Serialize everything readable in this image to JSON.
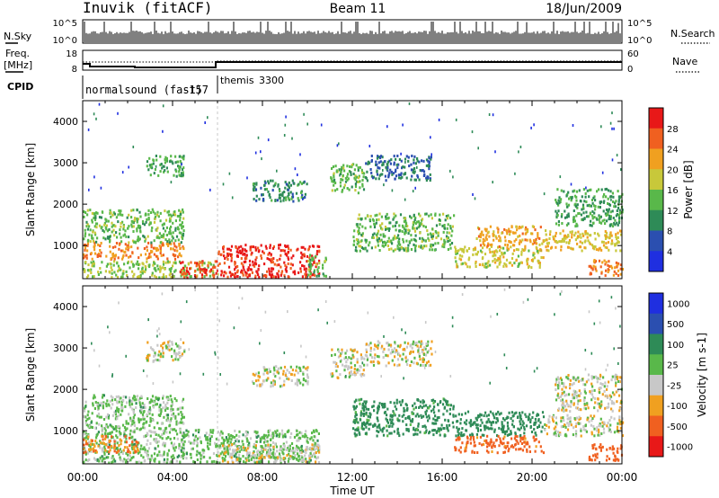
{
  "header": {
    "station": "Inuvik (fitACF)",
    "beam": "Beam 11",
    "date": "18/Jun/2009"
  },
  "summary_panels": {
    "nsky_label": "N.Sky",
    "nsky_ticks": [
      "10^5",
      "10^0"
    ],
    "nsearch_label": "N.Search",
    "freq_label_1": "Freq.",
    "freq_label_2": "[MHz]",
    "freq_ticks": [
      "18",
      "8"
    ],
    "nave_label": "Nave",
    "nave_ticks": [
      "60",
      "0"
    ],
    "cpid_label": "CPID",
    "cpid_segments": [
      {
        "name": "normalsound (fast)",
        "id": "-157",
        "start": "00:00",
        "end": "06:00"
      },
      {
        "name": "themis",
        "id": "3300",
        "start": "06:00",
        "end": "24:00"
      }
    ]
  },
  "chart_data": [
    {
      "type": "heatmap",
      "title": "",
      "xlabel": "Time UT",
      "ylabel": "Slant Range [km]",
      "xlim": [
        "00:00",
        "24:00"
      ],
      "ylim": [
        200,
        4500
      ],
      "x_ticks": [
        "00:00",
        "04:00",
        "08:00",
        "12:00",
        "16:00",
        "20:00",
        "00:00"
      ],
      "y_ticks": [
        1000,
        2000,
        3000,
        4000
      ],
      "colorbar": {
        "label": "Power [dB]",
        "ticks": [
          4,
          8,
          12,
          16,
          20,
          24,
          28
        ],
        "colors": [
          "#1f2fe0",
          "#2b4fb0",
          "#2e8b57",
          "#59b84a",
          "#c8c83a",
          "#f0a020",
          "#f06020",
          "#e81818"
        ]
      },
      "regions": [
        {
          "t0": 0.0,
          "t1": 6.0,
          "r0": 250,
          "r1": 650,
          "level": 16
        },
        {
          "t0": 0.0,
          "t1": 4.5,
          "r0": 700,
          "r1": 1100,
          "level": 24
        },
        {
          "t0": 0.0,
          "t1": 4.5,
          "r0": 1100,
          "r1": 1900,
          "level": 14
        },
        {
          "t0": 2.8,
          "t1": 4.5,
          "r0": 2700,
          "r1": 3200,
          "level": 12
        },
        {
          "t0": 4.3,
          "t1": 6.0,
          "r0": 250,
          "r1": 650,
          "level": 28
        },
        {
          "t0": 6.0,
          "t1": 10.5,
          "r0": 250,
          "r1": 1050,
          "level": 29
        },
        {
          "t0": 10.0,
          "t1": 10.8,
          "r0": 250,
          "r1": 800,
          "level": 14
        },
        {
          "t0": 7.5,
          "t1": 10.0,
          "r0": 2100,
          "r1": 2600,
          "level": 10
        },
        {
          "t0": 11.0,
          "t1": 12.5,
          "r0": 2300,
          "r1": 3000,
          "level": 14
        },
        {
          "t0": 12.0,
          "t1": 16.5,
          "r0": 900,
          "r1": 1800,
          "level": 14
        },
        {
          "t0": 12.5,
          "t1": 15.5,
          "r0": 2600,
          "r1": 3200,
          "level": 8
        },
        {
          "t0": 16.5,
          "t1": 20.5,
          "r0": 500,
          "r1": 1000,
          "level": 18
        },
        {
          "t0": 17.5,
          "t1": 20.5,
          "r0": 1000,
          "r1": 1500,
          "level": 22
        },
        {
          "t0": 20.5,
          "t1": 24.0,
          "r0": 900,
          "r1": 1400,
          "level": 20
        },
        {
          "t0": 21.0,
          "t1": 24.0,
          "r0": 1500,
          "r1": 2400,
          "level": 12
        },
        {
          "t0": 22.5,
          "t1": 24.0,
          "r0": 300,
          "r1": 700,
          "level": 24
        }
      ]
    },
    {
      "type": "heatmap",
      "title": "",
      "xlabel": "Time UT",
      "ylabel": "Slant Range [km]",
      "xlim": [
        "00:00",
        "24:00"
      ],
      "ylim": [
        200,
        4500
      ],
      "x_ticks": [
        "00:00",
        "04:00",
        "08:00",
        "12:00",
        "16:00",
        "20:00",
        "00:00"
      ],
      "y_ticks": [
        1000,
        2000,
        3000,
        4000
      ],
      "colorbar": {
        "label": "Velocity [m s-1]",
        "ticks": [
          1000,
          500,
          100,
          25,
          -25,
          -100,
          -500,
          -1000
        ],
        "colors": [
          "#1f2fe0",
          "#2b4fb0",
          "#2e8b57",
          "#59b84a",
          "#c8c8c8",
          "#f0a020",
          "#f06020",
          "#e81818"
        ]
      },
      "regions": [
        {
          "t0": 0.0,
          "t1": 4.5,
          "r0": 250,
          "r1": 1100,
          "level": 50
        },
        {
          "t0": 0.0,
          "t1": 4.5,
          "r0": 1100,
          "r1": 1900,
          "level": 50
        },
        {
          "t0": 0.0,
          "t1": 2.5,
          "r0": 500,
          "r1": 900,
          "level": -100
        },
        {
          "t0": 2.8,
          "t1": 4.5,
          "r0": 2700,
          "r1": 3200,
          "level": 0
        },
        {
          "t0": 4.3,
          "t1": 10.5,
          "r0": 250,
          "r1": 1050,
          "level": 50
        },
        {
          "t0": 6.0,
          "t1": 10.5,
          "r0": 250,
          "r1": 700,
          "level": 0
        },
        {
          "t0": 7.5,
          "t1": 10.0,
          "r0": 2100,
          "r1": 2600,
          "level": 0
        },
        {
          "t0": 11.0,
          "t1": 12.5,
          "r0": 2300,
          "r1": 3000,
          "level": 0
        },
        {
          "t0": 12.0,
          "t1": 16.5,
          "r0": 900,
          "r1": 1800,
          "level": 150
        },
        {
          "t0": 12.5,
          "t1": 15.5,
          "r0": 2600,
          "r1": 3200,
          "level": 0
        },
        {
          "t0": 16.5,
          "t1": 20.5,
          "r0": 900,
          "r1": 1500,
          "level": 200
        },
        {
          "t0": 16.5,
          "t1": 20.5,
          "r0": 500,
          "r1": 900,
          "level": -150
        },
        {
          "t0": 20.5,
          "t1": 24.0,
          "r0": 900,
          "r1": 1400,
          "level": 0
        },
        {
          "t0": 21.0,
          "t1": 24.0,
          "r0": 1500,
          "r1": 2400,
          "level": 0
        },
        {
          "t0": 22.5,
          "t1": 24.0,
          "r0": 300,
          "r1": 700,
          "level": -200
        }
      ]
    }
  ]
}
